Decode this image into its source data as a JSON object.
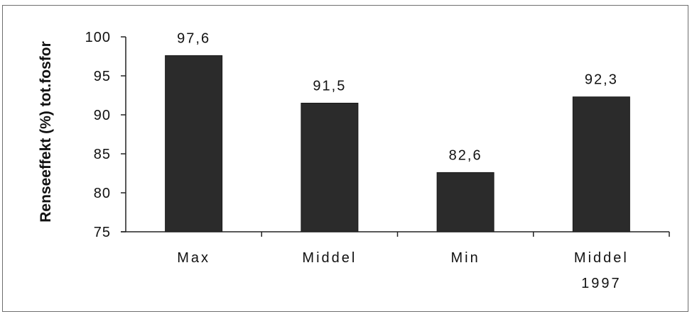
{
  "chart_data": {
    "type": "bar",
    "categories": [
      [
        "Max"
      ],
      [
        "Middel"
      ],
      [
        "Min"
      ],
      [
        "Middel",
        "1997"
      ]
    ],
    "values": [
      97.6,
      91.5,
      82.6,
      92.3
    ],
    "value_labels": [
      "97,6",
      "91,5",
      "82,6",
      "92,3"
    ],
    "ylabel": "Renseeffekt (%) tot.fosfor",
    "ylim": [
      75,
      100
    ],
    "yticks": [
      75,
      80,
      85,
      90,
      95,
      100
    ],
    "grid": false,
    "bar_color": "#2b2b2b"
  }
}
